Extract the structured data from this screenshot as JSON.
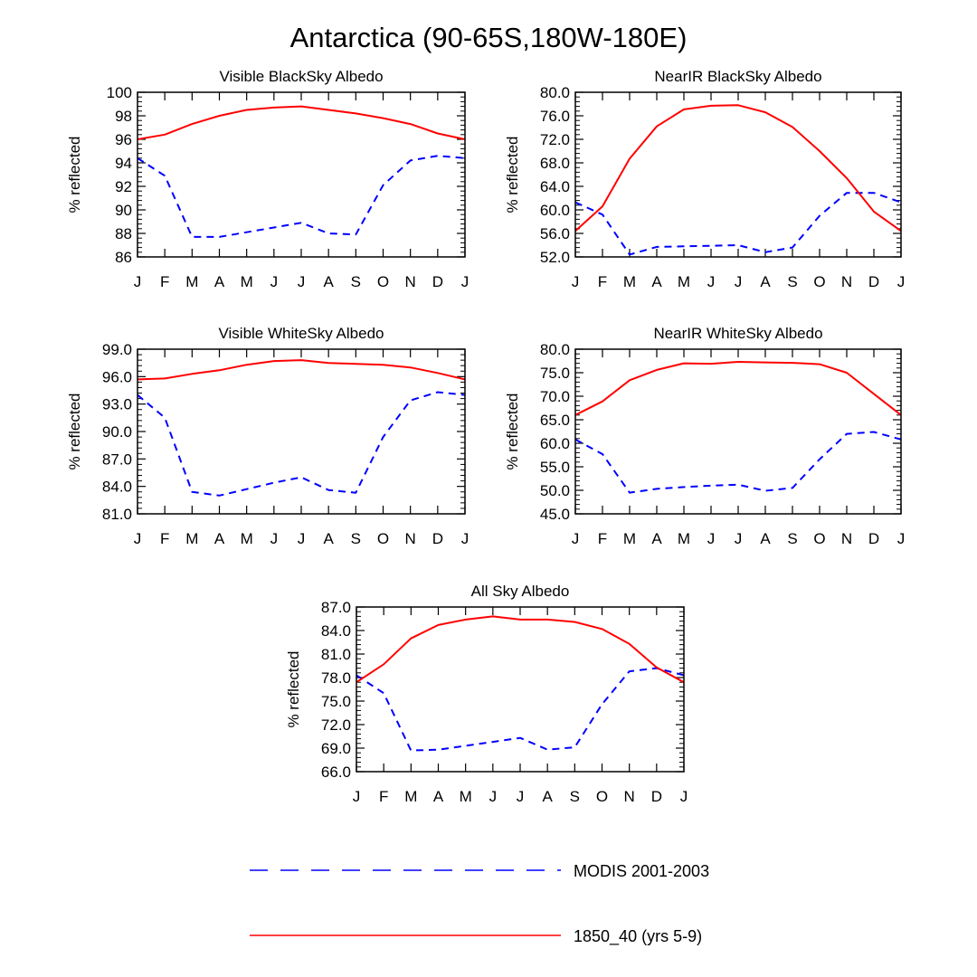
{
  "title": "Antarctica (90-65S,180W-180E)",
  "colors": {
    "modis": "#0000ff",
    "model": "#ff0000",
    "axis": "#000000"
  },
  "legend": {
    "items": [
      {
        "label": "MODIS 2001-2003",
        "color": "#0000ff",
        "style": "dashed"
      },
      {
        "label": "1850_40 (yrs 5-9)",
        "color": "#ff0000",
        "style": "solid"
      }
    ]
  },
  "chart_data": [
    {
      "type": "line",
      "title": "Visible BlackSky Albedo",
      "ylabel": "% reflected",
      "xlabel": "",
      "categories": [
        "J",
        "F",
        "M",
        "A",
        "M",
        "J",
        "J",
        "A",
        "S",
        "O",
        "N",
        "D",
        "J"
      ],
      "ylim": [
        86,
        100
      ],
      "yticks": [
        "86",
        "88",
        "90",
        "92",
        "94",
        "96",
        "98",
        "100"
      ],
      "series": [
        {
          "name": "MODIS 2001-2003",
          "values": [
            94.4,
            92.9,
            87.7,
            87.7,
            88.1,
            88.5,
            88.9,
            88.0,
            87.9,
            92.1,
            94.2,
            94.6,
            94.4
          ]
        },
        {
          "name": "1850_40 (yrs 5-9)",
          "values": [
            96.0,
            96.4,
            97.3,
            98.0,
            98.5,
            98.7,
            98.8,
            98.5,
            98.2,
            97.8,
            97.3,
            96.5,
            96.0
          ]
        }
      ]
    },
    {
      "type": "line",
      "title": "NearIR BlackSky Albedo",
      "ylabel": "% reflected",
      "xlabel": "",
      "categories": [
        "J",
        "F",
        "M",
        "A",
        "M",
        "J",
        "J",
        "A",
        "S",
        "O",
        "N",
        "D",
        "J"
      ],
      "ylim": [
        52,
        80
      ],
      "yticks": [
        "52.0",
        "56.0",
        "60.0",
        "64.0",
        "68.0",
        "72.0",
        "76.0",
        "80.0"
      ],
      "series": [
        {
          "name": "MODIS 2001-2003",
          "values": [
            61.3,
            59.2,
            52.4,
            53.7,
            53.8,
            53.9,
            54.0,
            52.8,
            53.6,
            59.0,
            62.9,
            62.9,
            61.3
          ]
        },
        {
          "name": "1850_40 (yrs 5-9)",
          "values": [
            56.4,
            60.6,
            68.7,
            74.2,
            77.1,
            77.7,
            77.8,
            76.6,
            74.1,
            70.0,
            65.4,
            59.7,
            56.4
          ]
        }
      ]
    },
    {
      "type": "line",
      "title": "Visible WhiteSky Albedo",
      "ylabel": "% reflected",
      "xlabel": "",
      "categories": [
        "J",
        "F",
        "M",
        "A",
        "M",
        "J",
        "J",
        "A",
        "S",
        "O",
        "N",
        "D",
        "J"
      ],
      "ylim": [
        81,
        99
      ],
      "yticks": [
        "81.0",
        "84.0",
        "87.0",
        "90.0",
        "93.0",
        "96.0",
        "99.0"
      ],
      "series": [
        {
          "name": "MODIS 2001-2003",
          "values": [
            94.0,
            91.5,
            83.4,
            83.0,
            83.7,
            84.4,
            85.0,
            83.6,
            83.3,
            89.4,
            93.4,
            94.3,
            94.0
          ]
        },
        {
          "name": "1850_40 (yrs 5-9)",
          "values": [
            95.7,
            95.8,
            96.3,
            96.7,
            97.3,
            97.7,
            97.8,
            97.5,
            97.4,
            97.3,
            97.0,
            96.4,
            95.7
          ]
        }
      ]
    },
    {
      "type": "line",
      "title": "NearIR WhiteSky Albedo",
      "ylabel": "% reflected",
      "xlabel": "",
      "categories": [
        "J",
        "F",
        "M",
        "A",
        "M",
        "J",
        "J",
        "A",
        "S",
        "O",
        "N",
        "D",
        "J"
      ],
      "ylim": [
        45,
        80
      ],
      "yticks": [
        "45.0",
        "50.0",
        "55.0",
        "60.0",
        "65.0",
        "70.0",
        "75.0",
        "80.0"
      ],
      "series": [
        {
          "name": "MODIS 2001-2003",
          "values": [
            60.8,
            57.7,
            49.5,
            50.3,
            50.7,
            51.0,
            51.2,
            49.9,
            50.5,
            56.6,
            62.0,
            62.4,
            60.8
          ]
        },
        {
          "name": "1850_40 (yrs 5-9)",
          "values": [
            66.0,
            68.9,
            73.4,
            75.6,
            77.0,
            76.9,
            77.3,
            77.2,
            77.1,
            76.8,
            75.0,
            70.5,
            66.0
          ]
        }
      ]
    },
    {
      "type": "line",
      "title": "All Sky Albedo",
      "ylabel": "% reflected",
      "xlabel": "",
      "categories": [
        "J",
        "F",
        "M",
        "A",
        "M",
        "J",
        "J",
        "A",
        "S",
        "O",
        "N",
        "D",
        "J"
      ],
      "ylim": [
        66,
        87
      ],
      "yticks": [
        "66.0",
        "69.0",
        "72.0",
        "75.0",
        "78.0",
        "81.0",
        "84.0",
        "87.0"
      ],
      "series": [
        {
          "name": "MODIS 2001-2003",
          "values": [
            78.3,
            76.0,
            68.7,
            68.8,
            69.3,
            69.8,
            70.3,
            68.8,
            69.1,
            74.6,
            78.8,
            79.2,
            78.3
          ]
        },
        {
          "name": "1850_40 (yrs 5-9)",
          "values": [
            77.4,
            79.7,
            83.0,
            84.7,
            85.4,
            85.8,
            85.4,
            85.4,
            85.1,
            84.2,
            82.3,
            79.3,
            77.4
          ]
        }
      ]
    }
  ]
}
